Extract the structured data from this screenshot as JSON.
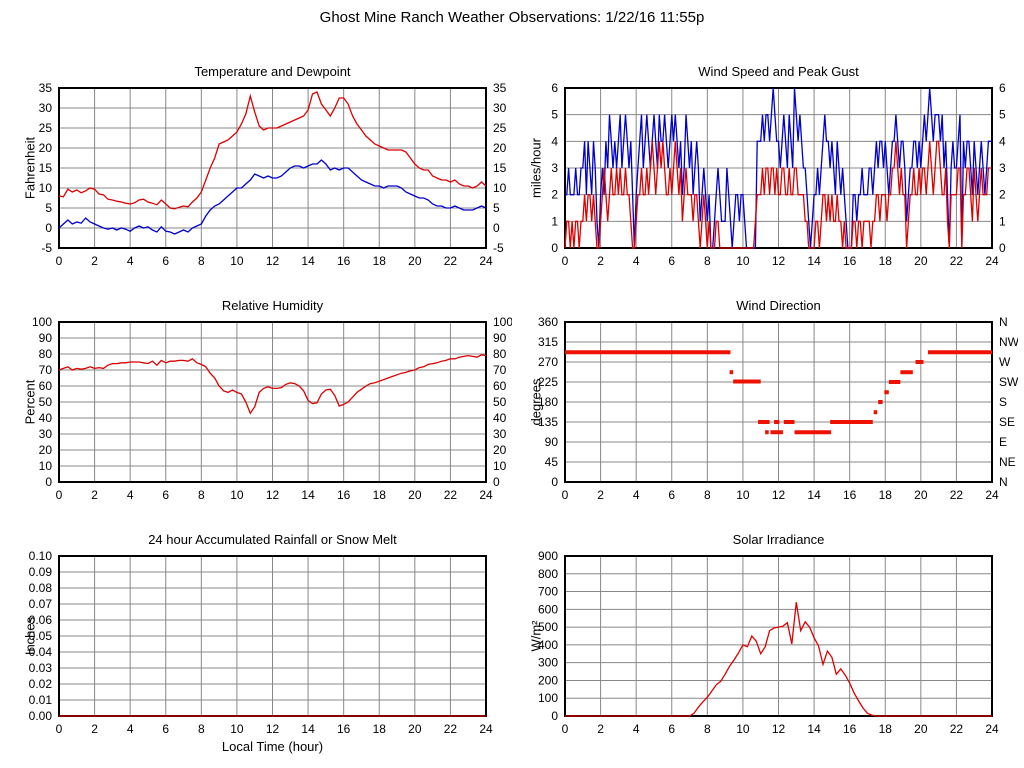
{
  "page_title": "Ghost Mine Ranch Weather Observations: 1/22/16 11:55p",
  "colors": {
    "red_series": "#dd0000",
    "blue_series": "#0000cc",
    "direction_red": "#ee1100",
    "grid": "#888888",
    "frame": "#000000",
    "background": "#ffffff"
  },
  "chart_data": [
    {
      "type": "line",
      "title": "Temperature and Dewpoint",
      "ylabel": "Fahrenheit",
      "xlim": [
        0,
        24
      ],
      "xticks": [
        0,
        2,
        4,
        6,
        8,
        10,
        12,
        14,
        16,
        18,
        20,
        22,
        24
      ],
      "ylim": [
        -5,
        35
      ],
      "yticks": [
        -5,
        0,
        5,
        10,
        15,
        20,
        25,
        30,
        35
      ],
      "right_ticks": "mirror",
      "grid": true,
      "series": [
        {
          "name": "temperature",
          "color": "#dd0000",
          "x0": 0,
          "dx": 0.25,
          "values": [
            8,
            7.8,
            9.7,
            9,
            9.5,
            8.8,
            9.3,
            10,
            9.7,
            8.5,
            8.3,
            7.2,
            7,
            6.7,
            6.5,
            6.2,
            6,
            6.3,
            7,
            7.2,
            6.5,
            6.2,
            5.8,
            7,
            6,
            5,
            4.8,
            5.2,
            5.5,
            5.3,
            6.5,
            7.5,
            9,
            12,
            15,
            17.5,
            21,
            21.5,
            22,
            23,
            24,
            26,
            28.5,
            33,
            29,
            25.5,
            24.5,
            25,
            25,
            25,
            25.5,
            26,
            26.5,
            27,
            27.5,
            28,
            29.5,
            33.5,
            34,
            31,
            29.5,
            28,
            30,
            32.5,
            32.5,
            31,
            28,
            26,
            24.5,
            23,
            22,
            21,
            20.5,
            20,
            19.5,
            19.5,
            19.5,
            19.5,
            19,
            17.5,
            16,
            15,
            14.5,
            14.5,
            13,
            12.5,
            12,
            12,
            11.5,
            12,
            11,
            10.5,
            10.5,
            10,
            10.5,
            11.5,
            10.5
          ]
        },
        {
          "name": "dewpoint",
          "color": "#0000cc",
          "x0": 0,
          "dx": 0.25,
          "values": [
            0,
            1,
            2,
            1,
            1.5,
            1.2,
            2.5,
            1.5,
            1,
            0.5,
            0,
            -0.3,
            0,
            -0.5,
            0,
            -0.3,
            -0.8,
            0,
            0.5,
            0,
            0.3,
            -0.5,
            -1,
            0.3,
            -0.8,
            -1,
            -1.5,
            -1,
            -0.5,
            -1,
            0,
            0.5,
            1,
            3,
            4.5,
            5.5,
            6,
            7,
            8,
            9,
            10,
            10,
            11,
            12,
            13.5,
            13,
            12.5,
            13,
            12.5,
            12.5,
            13,
            14,
            15,
            15.5,
            15.5,
            15,
            15.5,
            16,
            16,
            17,
            16,
            14.5,
            15,
            14.5,
            15,
            15,
            14,
            13,
            12,
            11.5,
            11,
            10.5,
            10.5,
            10,
            10.5,
            10.5,
            10.5,
            10,
            9,
            8.5,
            8,
            7.5,
            7.5,
            7,
            6,
            5.5,
            5.5,
            5,
            5,
            5.5,
            5,
            4.5,
            4.5,
            4.5,
            5,
            5.5,
            5
          ]
        }
      ]
    },
    {
      "type": "line",
      "title": "Wind Speed and Peak Gust",
      "ylabel": "miles/hour",
      "xlim": [
        0,
        24
      ],
      "xticks": [
        0,
        2,
        4,
        6,
        8,
        10,
        12,
        14,
        16,
        18,
        20,
        22,
        24
      ],
      "ylim": [
        0,
        6
      ],
      "yticks": [
        0,
        1,
        2,
        3,
        4,
        5,
        6
      ],
      "right_ticks": "mirror",
      "grid": true,
      "series": [
        {
          "name": "peak_gust",
          "color": "#0000cc",
          "x0": 0,
          "dx": 0.1,
          "digits": "2232223223342432431023243543434534543420234534543454354454345454342354342343123212001232111321012212210000004445455456544345435436545433210122323454434324323210002212232223323434434323445434431233443434545654555453420343345043443243234323444"
        },
        {
          "name": "wind_speed",
          "color": "#dd0000",
          "x0": 0,
          "dx": 0.1,
          "digits": "0110101101121221210012321232232322322100122322323432343432232343231232221221012101000110000000000000000000012223233233232233223223322221100001101221212112110100001101101111011221222122334323220122322323323432344322310222233022332132123222333"
        }
      ]
    },
    {
      "type": "line",
      "title": "Relative Humidity",
      "ylabel": "Percent",
      "xlim": [
        0,
        24
      ],
      "xticks": [
        0,
        2,
        4,
        6,
        8,
        10,
        12,
        14,
        16,
        18,
        20,
        22,
        24
      ],
      "ylim": [
        0,
        100
      ],
      "yticks": [
        0,
        10,
        20,
        30,
        40,
        50,
        60,
        70,
        80,
        90,
        100
      ],
      "right_ticks": "mirror",
      "grid": true,
      "series": [
        {
          "name": "relative_humidity",
          "color": "#dd0000",
          "x0": 0,
          "dx": 0.25,
          "values": [
            70,
            71,
            72,
            70,
            71,
            70.5,
            71,
            72,
            71,
            71.5,
            71,
            73,
            74,
            74,
            74.5,
            74.5,
            75,
            75,
            75,
            74.5,
            74,
            75.5,
            73,
            76,
            74.5,
            75.5,
            75.5,
            76,
            76,
            75.5,
            77,
            74.5,
            73.5,
            72,
            68,
            65,
            60,
            57,
            56,
            57.5,
            56,
            55,
            50,
            43,
            47,
            56,
            58.5,
            59.5,
            58.5,
            58.5,
            59,
            61,
            62,
            61.5,
            60,
            57,
            51,
            49,
            49.5,
            55,
            57.5,
            58,
            54,
            47.5,
            48.5,
            50,
            53,
            56,
            58,
            60,
            61.5,
            62,
            63,
            64,
            65,
            66,
            67,
            68,
            68.5,
            69.5,
            70,
            71.5,
            72,
            73.5,
            74,
            74.5,
            75.5,
            76,
            77,
            77,
            78,
            78.5,
            79,
            78.5,
            78,
            79.5,
            79
          ]
        }
      ]
    },
    {
      "type": "segments",
      "title": "Wind Direction",
      "ylabel": "degrees",
      "xlim": [
        0,
        24
      ],
      "xticks": [
        0,
        2,
        4,
        6,
        8,
        10,
        12,
        14,
        16,
        18,
        20,
        22,
        24
      ],
      "ylim": [
        0,
        360
      ],
      "yticks": [
        0,
        45,
        90,
        135,
        180,
        225,
        270,
        315,
        360
      ],
      "right_ticks": "compass",
      "compass": [
        "N",
        "NE",
        "E",
        "SE",
        "S",
        "SW",
        "W",
        "NW",
        "N"
      ],
      "grid": true,
      "series": [
        {
          "name": "wind_direction",
          "color": "#ee1100",
          "width": 4,
          "segments": [
            [
              0,
              9.3,
              292
            ],
            [
              9.25,
              9.45,
              247
            ],
            [
              9.45,
              11.0,
              226
            ],
            [
              10.85,
              11.5,
              135
            ],
            [
              11.25,
              11.45,
              112
            ],
            [
              11.55,
              12.25,
              112
            ],
            [
              11.75,
              12.05,
              135
            ],
            [
              12.3,
              12.9,
              135
            ],
            [
              12.9,
              14.95,
              112
            ],
            [
              14.9,
              17.3,
              135
            ],
            [
              17.35,
              17.55,
              157
            ],
            [
              17.6,
              17.85,
              180
            ],
            [
              17.95,
              18.2,
              202
            ],
            [
              18.2,
              18.85,
              225
            ],
            [
              18.85,
              19.55,
              247
            ],
            [
              19.7,
              20.15,
              270
            ],
            [
              20.4,
              24,
              292
            ]
          ]
        }
      ]
    },
    {
      "type": "line",
      "title": "24 hour Accumulated Rainfall or Snow Melt",
      "ylabel": "Inches",
      "xlabel": "Local Time (hour)",
      "xlim": [
        0,
        24
      ],
      "xticks": [
        0,
        2,
        4,
        6,
        8,
        10,
        12,
        14,
        16,
        18,
        20,
        22,
        24
      ],
      "ylim": [
        0,
        0.1
      ],
      "yticks": [
        0,
        0.01,
        0.02,
        0.03,
        0.04,
        0.05,
        0.06,
        0.07,
        0.08,
        0.09,
        0.1
      ],
      "ytick_labels": [
        "0.00",
        "0.01",
        "0.02",
        "0.03",
        "0.04",
        "0.05",
        "0.06",
        "0.07",
        "0.08",
        "0.09",
        "0.10"
      ],
      "right_ticks": "none",
      "grid": true,
      "series": [
        {
          "name": "accumulated_rainfall",
          "color": "#dd0000",
          "points": [
            [
              0,
              0
            ],
            [
              24,
              0
            ]
          ]
        }
      ]
    },
    {
      "type": "line",
      "title": "Solar Irradiance",
      "ylabel": "W/m²",
      "xlim": [
        0,
        24
      ],
      "xticks": [
        0,
        2,
        4,
        6,
        8,
        10,
        12,
        14,
        16,
        18,
        20,
        22,
        24
      ],
      "ylim": [
        0,
        900
      ],
      "yticks": [
        0,
        100,
        200,
        300,
        400,
        500,
        600,
        700,
        800,
        900
      ],
      "right_ticks": "none",
      "grid": true,
      "series": [
        {
          "name": "solar_irradiance",
          "color": "#dd0000",
          "x0": 0,
          "dx": 0.25,
          "values": [
            0,
            0,
            0,
            0,
            0,
            0,
            0,
            0,
            0,
            0,
            0,
            0,
            0,
            0,
            0,
            0,
            0,
            0,
            0,
            0,
            0,
            0,
            0,
            0,
            0,
            0,
            0,
            0,
            0,
            15,
            50,
            80,
            105,
            140,
            175,
            195,
            235,
            280,
            315,
            355,
            400,
            390,
            450,
            420,
            350,
            390,
            480,
            495,
            500,
            505,
            525,
            405,
            640,
            480,
            530,
            500,
            440,
            395,
            290,
            365,
            330,
            235,
            265,
            230,
            185,
            130,
            85,
            45,
            15,
            5,
            0,
            0,
            0,
            0,
            0,
            0,
            0,
            0,
            0,
            0,
            0,
            0,
            0,
            0,
            0,
            0,
            0,
            0,
            0,
            0,
            0,
            0,
            0,
            0,
            0,
            0,
            0
          ]
        }
      ]
    }
  ]
}
